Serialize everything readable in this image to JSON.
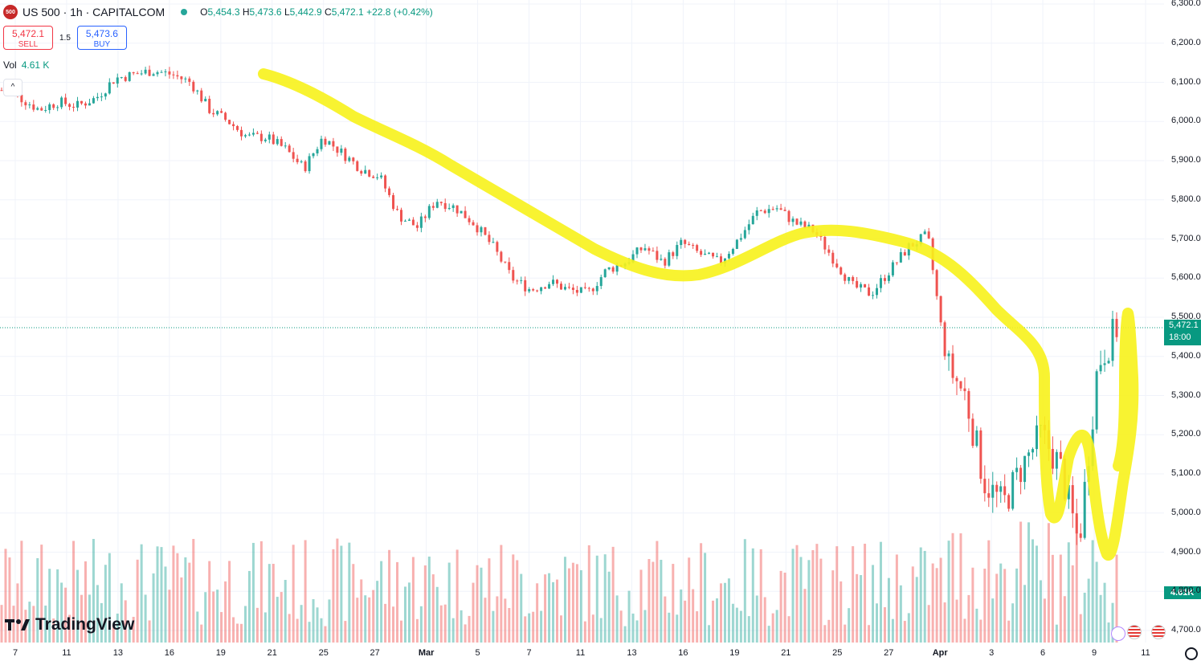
{
  "header": {
    "symbol_logo": "500",
    "title": "US 500 · 1h · CAPITALCOM",
    "ohlc": {
      "open_label": "O",
      "open": "5,454.3",
      "high_label": "H",
      "high": "5,473.6",
      "low_label": "L",
      "low": "5,442.9",
      "close_label": "C",
      "close": "5,472.1",
      "change": "+22.8 (+0.42%)"
    }
  },
  "trade": {
    "sell_price": "5,472.1",
    "sell_label": "SELL",
    "spread": "1.5",
    "buy_price": "5,473.6",
    "buy_label": "BUY"
  },
  "volume_legend": {
    "label": "Vol",
    "value": "4.61 K"
  },
  "price_axis": {
    "labels": [
      "6,300.0",
      "6,200.0",
      "6,100.0",
      "6,000.0",
      "5,900.0",
      "5,800.0",
      "5,700.0",
      "5,600.0",
      "5,500.0",
      "5,400.0",
      "5,300.0",
      "5,200.0",
      "5,100.0",
      "5,000.0",
      "4,900.0",
      "4,800.0",
      "4,700.0"
    ],
    "current_price": "5,472.1",
    "countdown": "18:00",
    "volume_tag": "4.61K"
  },
  "time_axis": {
    "labels": [
      "7",
      "11",
      "13",
      "16",
      "19",
      "21",
      "25",
      "27",
      "Mar",
      "5",
      "7",
      "11",
      "13",
      "16",
      "19",
      "21",
      "25",
      "27",
      "Apr",
      "3",
      "6",
      "9",
      "11"
    ]
  },
  "branding": {
    "logo_text": "TradingView"
  },
  "colors": {
    "up": "#26a69a",
    "down": "#ef5350",
    "highlight": "#f7f21b",
    "tag": "#089981"
  },
  "chart_data": {
    "type": "candlestick",
    "ylim": [
      4700,
      6300
    ],
    "x_ticks": [
      "7",
      "11",
      "13",
      "16",
      "19",
      "21",
      "25",
      "27",
      "Mar",
      "5",
      "7",
      "11",
      "13",
      "16",
      "19",
      "21",
      "25",
      "27",
      "Apr",
      "3",
      "6",
      "9",
      "11"
    ],
    "series": [
      {
        "values": [
          6080,
          6060,
          6030,
          6050,
          6040,
          6060,
          6110,
          6120,
          6130,
          6120,
          6100,
          6030,
          6000,
          5960,
          5960,
          5930,
          5880,
          5960,
          5920,
          5880,
          5860,
          5760,
          5730,
          5800,
          5780,
          5740,
          5680,
          5600,
          5570,
          5590,
          5570,
          5560,
          5620,
          5640,
          5680,
          5640,
          5690,
          5660,
          5640,
          5700,
          5770,
          5780,
          5740,
          5720,
          5650,
          5580,
          5560,
          5620,
          5680,
          5710,
          5380,
          5300,
          5080,
          5020,
          5120,
          5200,
          5120,
          4920,
          5380,
          5472
        ]
      }
    ]
  }
}
